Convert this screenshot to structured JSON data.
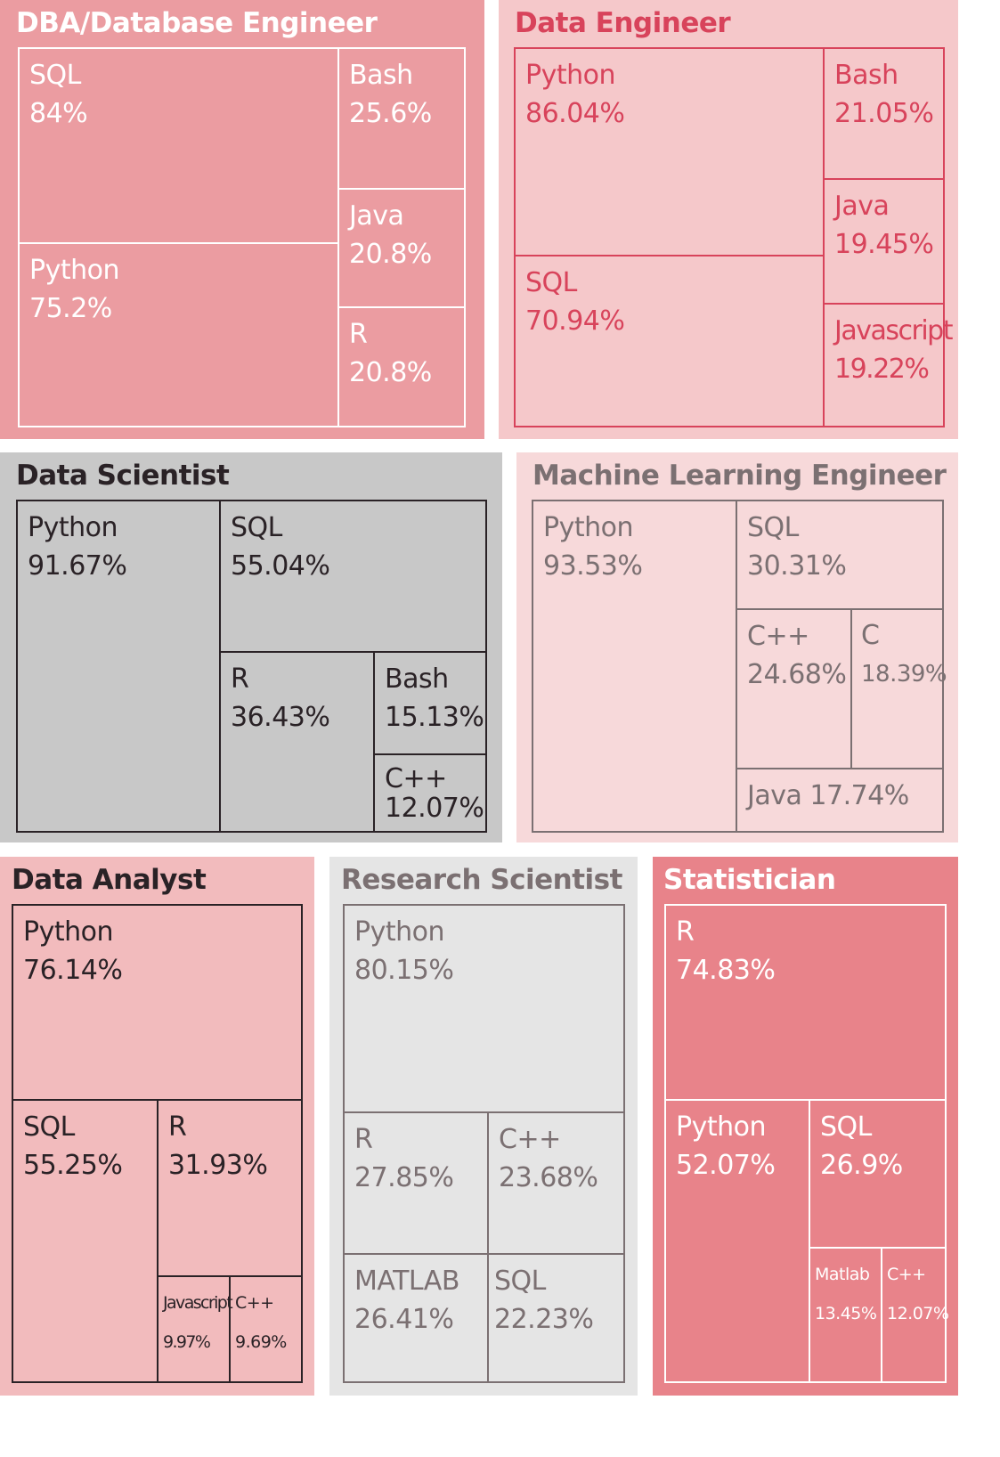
{
  "chart_data": [
    {
      "type": "treemap",
      "title": "DBA/Database Engineer",
      "colors": {
        "background": "#eb9ca1",
        "title": "#ffffff",
        "text": "#ffffff",
        "border": "#ffffff"
      },
      "items": [
        {
          "name": "SQL",
          "value": 84,
          "label": "84%"
        },
        {
          "name": "Python",
          "value": 75.2,
          "label": "75.2%"
        },
        {
          "name": "Bash",
          "value": 25.6,
          "label": "25.6%"
        },
        {
          "name": "Java",
          "value": 20.8,
          "label": "20.8%"
        },
        {
          "name": "R",
          "value": 20.8,
          "label": "20.8%"
        }
      ]
    },
    {
      "type": "treemap",
      "title": "Data Engineer",
      "colors": {
        "background": "#f5c8ca",
        "title": "#d8435b",
        "text": "#d8435b",
        "border": "#d8435b"
      },
      "items": [
        {
          "name": "Python",
          "value": 86.04,
          "label": "86.04%"
        },
        {
          "name": "SQL",
          "value": 70.94,
          "label": "70.94%"
        },
        {
          "name": "Bash",
          "value": 21.05,
          "label": "21.05%"
        },
        {
          "name": "Java",
          "value": 19.45,
          "label": "19.45%"
        },
        {
          "name": "Javascript",
          "value": 19.22,
          "label": "19.22%"
        }
      ]
    },
    {
      "type": "treemap",
      "title": "Data Scientist",
      "colors": {
        "background": "#c8c8c8",
        "title": "#2a2226",
        "text": "#2a2226",
        "border": "#2a2226"
      },
      "items": [
        {
          "name": "Python",
          "value": 91.67,
          "label": "91.67%"
        },
        {
          "name": "SQL",
          "value": 55.04,
          "label": "55.04%"
        },
        {
          "name": "R",
          "value": 36.43,
          "label": "36.43%"
        },
        {
          "name": "Bash",
          "value": 15.13,
          "label": "15.13%"
        },
        {
          "name": "C++",
          "value": 12.07,
          "label": "12.07%"
        }
      ]
    },
    {
      "type": "treemap",
      "title": "Machine Learning Engineer",
      "colors": {
        "background": "#f7d9da",
        "title": "#7b7072",
        "text": "#7b7072",
        "border": "#7b7072"
      },
      "items": [
        {
          "name": "Python",
          "value": 93.53,
          "label": "93.53%"
        },
        {
          "name": "SQL",
          "value": 30.31,
          "label": "30.31%"
        },
        {
          "name": "C++",
          "value": 24.68,
          "label": "24.68%"
        },
        {
          "name": "C",
          "value": 18.39,
          "label": "18.39%"
        },
        {
          "name": "Java",
          "value": 17.74,
          "label": "17.74%"
        }
      ]
    },
    {
      "type": "treemap",
      "title": "Data Analyst",
      "colors": {
        "background": "#f2bbbd",
        "title": "#2a2226",
        "text": "#2a2226",
        "border": "#2a2226"
      },
      "items": [
        {
          "name": "Python",
          "value": 76.14,
          "label": "76.14%"
        },
        {
          "name": "SQL",
          "value": 55.25,
          "label": "55.25%"
        },
        {
          "name": "R",
          "value": 31.93,
          "label": "31.93%"
        },
        {
          "name": "Javascript",
          "value": 9.97,
          "label": "9.97%"
        },
        {
          "name": "C++",
          "value": 9.69,
          "label": "9.69%"
        }
      ]
    },
    {
      "type": "treemap",
      "title": "Research Scientist",
      "colors": {
        "background": "#e5e5e5",
        "title": "#7b7072",
        "text": "#7b7072",
        "border": "#7b7072"
      },
      "items": [
        {
          "name": "Python",
          "value": 80.15,
          "label": "80.15%"
        },
        {
          "name": "R",
          "value": 27.85,
          "label": "27.85%"
        },
        {
          "name": "C++",
          "value": 23.68,
          "label": "23.68%"
        },
        {
          "name": "MATLAB",
          "value": 26.41,
          "label": "26.41%"
        },
        {
          "name": "SQL",
          "value": 22.23,
          "label": "22.23%"
        }
      ]
    },
    {
      "type": "treemap",
      "title": "Statistician",
      "colors": {
        "background": "#e8838a",
        "title": "#ffffff",
        "text": "#ffffff",
        "border": "#ffffff"
      },
      "items": [
        {
          "name": "R",
          "value": 74.83,
          "label": "74.83%"
        },
        {
          "name": "Python",
          "value": 52.07,
          "label": "52.07%"
        },
        {
          "name": "SQL",
          "value": 26.9,
          "label": "26.9%"
        },
        {
          "name": "Matlab",
          "value": 13.45,
          "label": "13.45%"
        },
        {
          "name": "C++",
          "value": 12.07,
          "label": "12.07%"
        }
      ]
    }
  ]
}
